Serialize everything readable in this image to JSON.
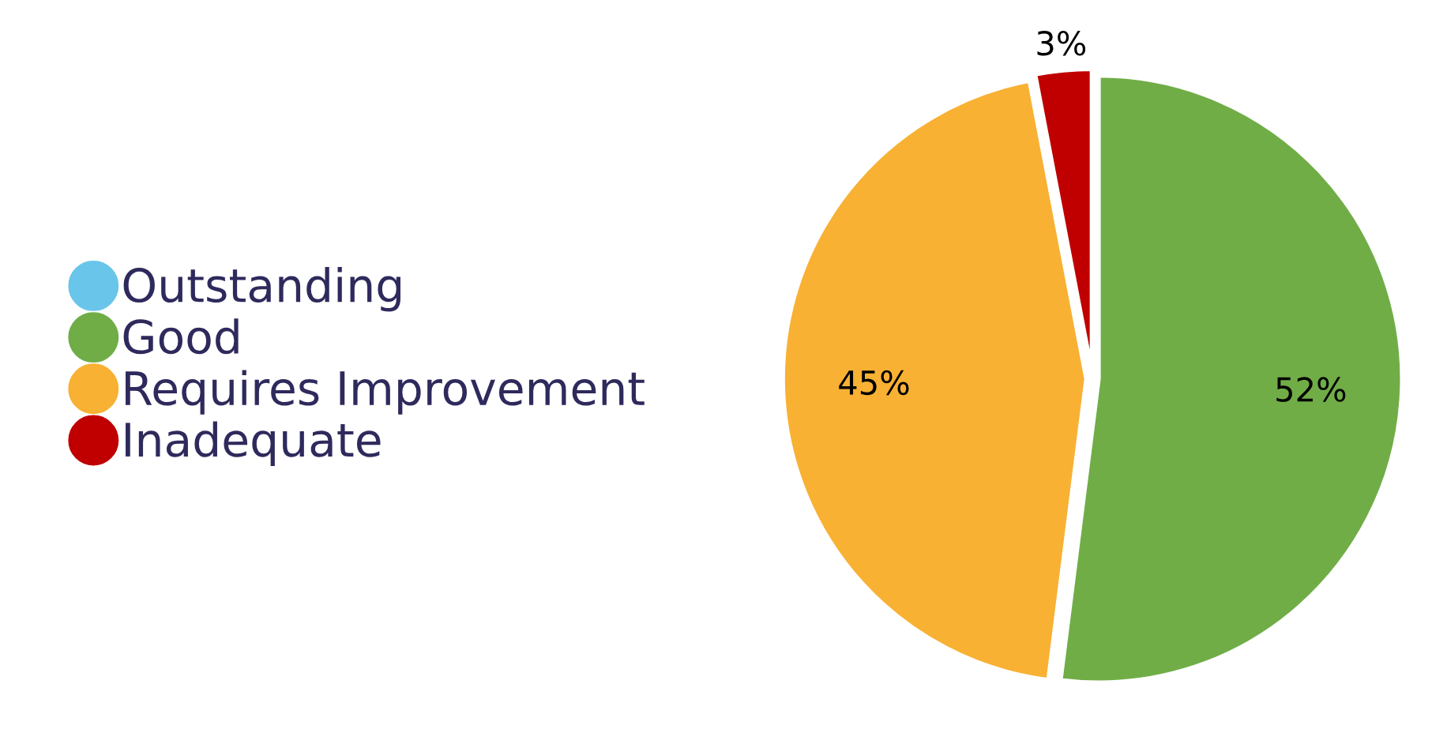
{
  "chart_data": {
    "type": "pie",
    "categories": [
      "Outstanding",
      "Good",
      "Requires Improvement",
      "Inadequate"
    ],
    "values": [
      0,
      52,
      45,
      3
    ],
    "colors": [
      "#6ac5ea",
      "#70ad47",
      "#f8b133",
      "#c00000"
    ],
    "value_labels": [
      null,
      "52%",
      "45%",
      "3%"
    ],
    "legend": "left"
  }
}
